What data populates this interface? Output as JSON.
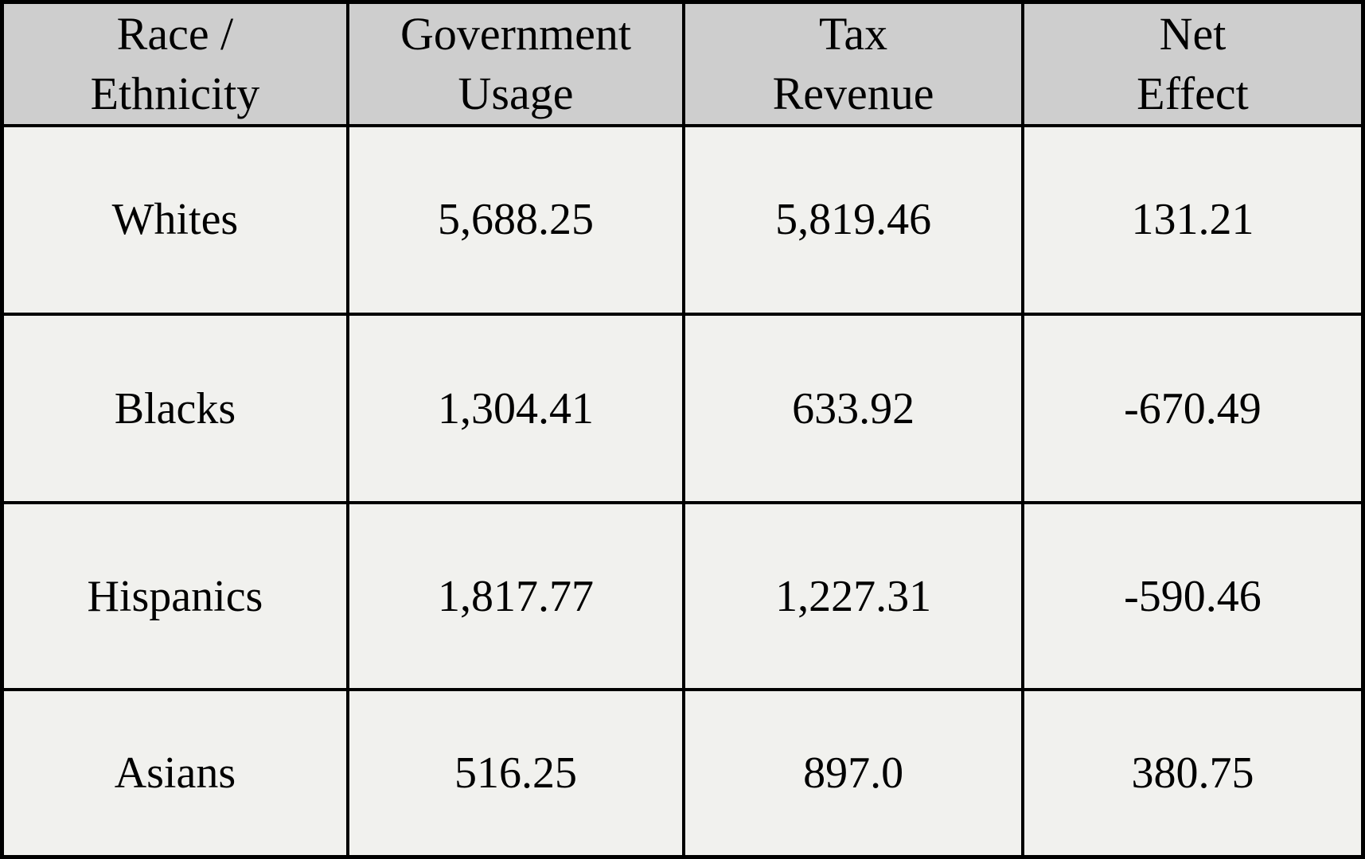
{
  "colors": {
    "header_bg": "#cecece",
    "body_bg": "#f1f1ee",
    "border": "#000000",
    "text": "#000000"
  },
  "table": {
    "headers": [
      "Race /\nEthnicity",
      "Government\nUsage",
      "Tax\nRevenue",
      "Net\nEffect"
    ],
    "rows": [
      {
        "race": "Whites",
        "government_usage": "5,688.25",
        "tax_revenue": "5,819.46",
        "net_effect": "131.21"
      },
      {
        "race": "Blacks",
        "government_usage": "1,304.41",
        "tax_revenue": "633.92",
        "net_effect": "-670.49"
      },
      {
        "race": "Hispanics",
        "government_usage": "1,817.77",
        "tax_revenue": "1,227.31",
        "net_effect": "-590.46"
      },
      {
        "race": "Asians",
        "government_usage": "516.25",
        "tax_revenue": "897.0",
        "net_effect": "380.75"
      }
    ]
  },
  "chart_data": {
    "type": "table",
    "title": "",
    "columns": [
      "Race / Ethnicity",
      "Government Usage",
      "Tax Revenue",
      "Net Effect"
    ],
    "rows": [
      [
        "Whites",
        5688.25,
        5819.46,
        131.21
      ],
      [
        "Blacks",
        1304.41,
        633.92,
        -670.49
      ],
      [
        "Hispanics",
        1817.77,
        1227.31,
        -590.46
      ],
      [
        "Asians",
        516.25,
        897.0,
        380.75
      ]
    ],
    "layout_hints": {
      "header_background": "#cecece",
      "body_background": "#f1f1ee",
      "grid": "on",
      "grid_color": "#000000"
    }
  }
}
